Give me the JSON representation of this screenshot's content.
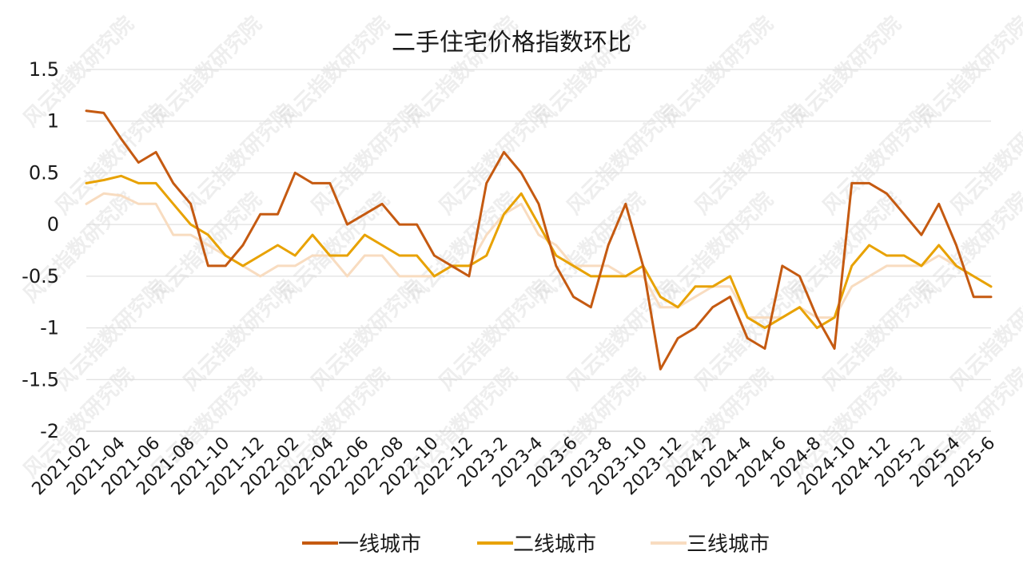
{
  "chart_data": {
    "type": "line",
    "title": "二手住宅价格指数环比",
    "xlabel": "",
    "ylabel": "",
    "ylim": [
      -2,
      1.5
    ],
    "yticks": [
      "1.5",
      "1",
      "0.5",
      "0",
      "-0.5",
      "-1",
      "-1.5",
      "-2"
    ],
    "yticks_values": [
      1.5,
      1,
      0.5,
      0,
      -0.5,
      -1,
      -1.5,
      -2
    ],
    "grid": true,
    "legend_position": "bottom",
    "categories": [
      "2021-02",
      "2021-03",
      "2021-04",
      "2021-05",
      "2021-06",
      "2021-07",
      "2021-08",
      "2021-09",
      "2021-10",
      "2021-11",
      "2021-12",
      "2022-01",
      "2022-02",
      "2022-03",
      "2022-04",
      "2022-05",
      "2022-06",
      "2022-07",
      "2022-08",
      "2022-09",
      "2022-10",
      "2022-11",
      "2022-12",
      "2023-1",
      "2023-2",
      "2023-3",
      "2023-4",
      "2023-5",
      "2023-6",
      "2023-7",
      "2023-8",
      "2023-9",
      "2023-10",
      "2023-11",
      "2023-12",
      "2024-1",
      "2024-2",
      "2024-3",
      "2024-4",
      "2024-5",
      "2024-6",
      "2024-7",
      "2024-8",
      "2024-9",
      "2024-10",
      "2024-11",
      "2024-12",
      "2025-1",
      "2025-2",
      "2025-3",
      "2025-4",
      "2025-5",
      "2025-6"
    ],
    "tick_labels": [
      {
        "index": 0,
        "text": "2021-02"
      },
      {
        "index": 2,
        "text": "2021-04"
      },
      {
        "index": 4,
        "text": "2021-06"
      },
      {
        "index": 6,
        "text": "2021-08"
      },
      {
        "index": 8,
        "text": "2021-10"
      },
      {
        "index": 10,
        "text": "2021-12"
      },
      {
        "index": 12,
        "text": "2022-02"
      },
      {
        "index": 14,
        "text": "2022-04"
      },
      {
        "index": 16,
        "text": "2022-06"
      },
      {
        "index": 18,
        "text": "2022-08"
      },
      {
        "index": 20,
        "text": "2022-10"
      },
      {
        "index": 22,
        "text": "2022-12"
      },
      {
        "index": 24,
        "text": "2023-2"
      },
      {
        "index": 26,
        "text": "2023-4"
      },
      {
        "index": 28,
        "text": "2023-6"
      },
      {
        "index": 30,
        "text": "2023-8"
      },
      {
        "index": 32,
        "text": "2023-10"
      },
      {
        "index": 34,
        "text": "2023-12"
      },
      {
        "index": 36,
        "text": "2024-2"
      },
      {
        "index": 38,
        "text": "2024-4"
      },
      {
        "index": 40,
        "text": "2024-6"
      },
      {
        "index": 42,
        "text": "2024-8"
      },
      {
        "index": 44,
        "text": "2024-10"
      },
      {
        "index": 46,
        "text": "2024-12"
      },
      {
        "index": 48,
        "text": "2025-2"
      },
      {
        "index": 50,
        "text": "2025-4"
      },
      {
        "index": 52,
        "text": "2025-6"
      }
    ],
    "series": [
      {
        "name": "一线城市",
        "color": "#c55a11",
        "values": [
          1.1,
          1.08,
          0.83,
          0.6,
          0.7,
          0.4,
          0.2,
          -0.4,
          -0.4,
          -0.2,
          0.1,
          0.1,
          0.5,
          0.4,
          0.4,
          0.0,
          0.1,
          0.2,
          0.0,
          0.0,
          -0.3,
          -0.4,
          -0.5,
          0.4,
          0.7,
          0.5,
          0.2,
          -0.4,
          -0.7,
          -0.8,
          -0.2,
          0.2,
          -0.4,
          -1.4,
          -1.1,
          -1.0,
          -0.8,
          -0.7,
          -1.1,
          -1.2,
          -0.4,
          -0.5,
          -0.9,
          -1.2,
          0.4,
          0.4,
          0.3,
          0.1,
          -0.1,
          0.2,
          -0.2,
          -0.7,
          -0.7
        ]
      },
      {
        "name": "二线城市",
        "color": "#e8a202",
        "values": [
          0.4,
          0.43,
          0.47,
          0.4,
          0.4,
          0.2,
          0.0,
          -0.1,
          -0.3,
          -0.4,
          -0.3,
          -0.2,
          -0.3,
          -0.1,
          -0.3,
          -0.3,
          -0.1,
          -0.2,
          -0.3,
          -0.3,
          -0.5,
          -0.4,
          -0.4,
          -0.3,
          0.1,
          0.3,
          0.0,
          -0.3,
          -0.4,
          -0.5,
          -0.5,
          -0.5,
          -0.4,
          -0.7,
          -0.8,
          -0.6,
          -0.6,
          -0.5,
          -0.9,
          -1.0,
          -0.9,
          -0.8,
          -1.0,
          -0.9,
          -0.4,
          -0.2,
          -0.3,
          -0.3,
          -0.4,
          -0.2,
          -0.4,
          -0.5,
          -0.6
        ]
      },
      {
        "name": "三线城市",
        "color": "#f8dcc0",
        "values": [
          0.2,
          0.3,
          0.28,
          0.2,
          0.2,
          -0.1,
          -0.1,
          -0.2,
          -0.3,
          -0.4,
          -0.5,
          -0.4,
          -0.4,
          -0.3,
          -0.3,
          -0.5,
          -0.3,
          -0.3,
          -0.5,
          -0.5,
          -0.5,
          -0.4,
          -0.4,
          -0.1,
          0.1,
          0.2,
          -0.1,
          -0.2,
          -0.4,
          -0.4,
          -0.4,
          -0.5,
          -0.5,
          -0.8,
          -0.8,
          -0.7,
          -0.6,
          -0.6,
          -0.9,
          -0.9,
          -0.9,
          -0.8,
          -0.9,
          -0.9,
          -0.6,
          -0.5,
          -0.4,
          -0.4,
          -0.4,
          -0.3,
          -0.4,
          -0.5,
          -0.6
        ]
      }
    ]
  },
  "watermark": {
    "text": "风云指数研究院"
  }
}
